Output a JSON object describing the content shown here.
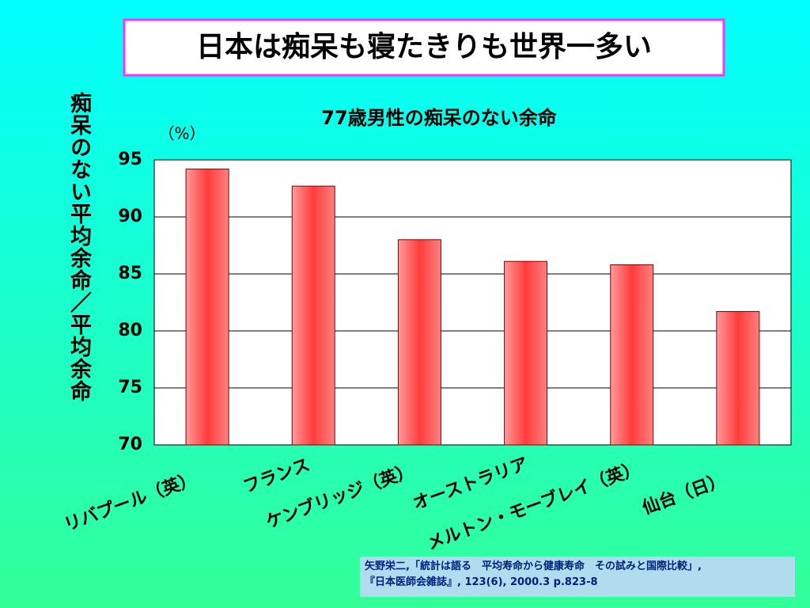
{
  "title": "日本は痴呆も寝たきりも世界一多い",
  "chart_data": {
    "type": "bar",
    "title": "77歳男性の痴呆のない余命",
    "unit": "（%）",
    "ylabel": "痴呆のない平均余命／平均余命",
    "categories": [
      "リバプール（英）",
      "フランス",
      "ケンブリッジ（英）",
      "オーストラリア",
      "メルトン・モーブレイ（英）",
      "仙台（日）"
    ],
    "values": [
      94.2,
      92.7,
      88.0,
      86.1,
      85.8,
      81.7
    ],
    "color": "#ff4d4d",
    "ylim": [
      70,
      95
    ],
    "yticks": [
      70,
      75,
      80,
      85,
      90,
      95
    ],
    "grid": true
  },
  "source": [
    "矢野栄二,「統計は語る　平均寿命から健康寿命　その試みと国際比較」,",
    "『日本医師会雑誌』, 123(6), 2000.3 p.823-8"
  ]
}
